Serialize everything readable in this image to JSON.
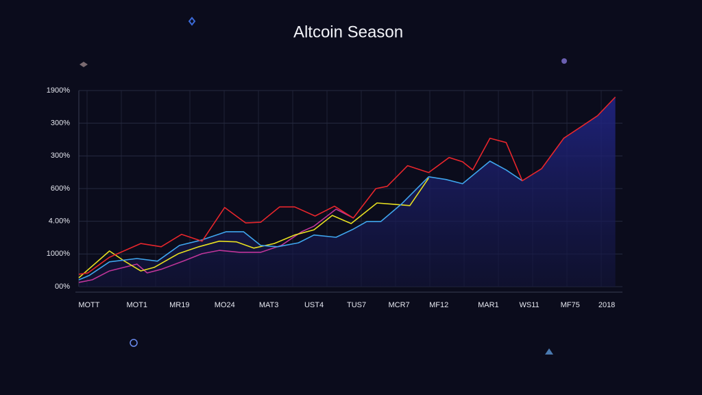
{
  "chart_data": {
    "type": "line",
    "title": "Altcoin Season",
    "grid": true,
    "xlim": [
      0,
      100
    ],
    "ylim": [
      0,
      6
    ],
    "xticks": [
      {
        "value": 1.9,
        "label": "MOTT"
      },
      {
        "value": 10.8,
        "label": "MOT1"
      },
      {
        "value": 18.7,
        "label": "MR19"
      },
      {
        "value": 27.1,
        "label": "MO24"
      },
      {
        "value": 35.3,
        "label": "MAT3"
      },
      {
        "value": 43.7,
        "label": "UST4"
      },
      {
        "value": 51.6,
        "label": "TUS7"
      },
      {
        "value": 59.5,
        "label": "MCR7"
      },
      {
        "value": 66.9,
        "label": "MF12"
      },
      {
        "value": 76.1,
        "label": "MAR1"
      },
      {
        "value": 83.7,
        "label": "WS11"
      },
      {
        "value": 91.3,
        "label": "MF75"
      },
      {
        "value": 98.1,
        "label": "2018"
      }
    ],
    "yticks": [
      {
        "value": 0,
        "label": "00%"
      },
      {
        "value": 1,
        "label": "1000%"
      },
      {
        "value": 2,
        "label": "4.00%"
      },
      {
        "value": 3,
        "label": "600%"
      },
      {
        "value": 4,
        "label": "300%"
      },
      {
        "value": 5,
        "label": "300%"
      },
      {
        "value": 6,
        "label": "1900%"
      }
    ],
    "series": [
      {
        "color": "#1c1f6e",
        "fill": true,
        "x": [
          0,
          1.9,
          5.7,
          10.8,
          14.6,
          18.7,
          22.9,
          27.4,
          30.6,
          33.8,
          36.9,
          40.8,
          43.7,
          47.8,
          51.0,
          53.5,
          56.1,
          59.9,
          65.0,
          68.2,
          71.3,
          76.4,
          79.4,
          82.4,
          86.0,
          90.1,
          93.4,
          96.4,
          99.7
        ],
        "values": [
          0.21,
          0.34,
          0.76,
          0.86,
          0.78,
          1.26,
          1.43,
          1.68,
          1.68,
          1.26,
          1.22,
          1.34,
          1.58,
          1.51,
          1.76,
          1.99,
          1.99,
          2.52,
          3.36,
          3.28,
          3.15,
          3.84,
          3.57,
          3.24,
          3.61,
          4.54,
          4.9,
          5.23,
          5.8
        ]
      },
      {
        "color": "#c0359a",
        "x": [
          0,
          2.5,
          5.7,
          10.8,
          12.7,
          15.3,
          19.7,
          22.9,
          26.1,
          29.9,
          33.8,
          37.6,
          41.4,
          43.7,
          47.8,
          51.0
        ],
        "values": [
          0.13,
          0.21,
          0.48,
          0.69,
          0.42,
          0.53,
          0.8,
          1.01,
          1.11,
          1.05,
          1.05,
          1.26,
          1.68,
          1.85,
          2.37,
          2.1
        ]
      },
      {
        "color": "#e8e020",
        "x": [
          0,
          5.7,
          8.3,
          11.5,
          14.0,
          18.5,
          22.3,
          26.1,
          29.3,
          32.5,
          36.3,
          40.1,
          43.7,
          47.1,
          50.6,
          55.4,
          58.6,
          61.5,
          65.0
        ],
        "values": [
          0.27,
          1.09,
          0.8,
          0.48,
          0.59,
          1.01,
          1.22,
          1.39,
          1.37,
          1.18,
          1.32,
          1.58,
          1.74,
          2.18,
          1.93,
          2.56,
          2.52,
          2.48,
          3.32
        ]
      },
      {
        "color": "#3fa6ee",
        "x": [
          0,
          1.9,
          5.7,
          10.8,
          14.6,
          18.7,
          22.9,
          27.4,
          30.6,
          33.8,
          36.9,
          40.8,
          43.7,
          47.8,
          51.0,
          53.5,
          56.1,
          59.9,
          65.0,
          68.2,
          71.3,
          76.4,
          79.4,
          82.4
        ],
        "values": [
          0.21,
          0.34,
          0.76,
          0.86,
          0.78,
          1.26,
          1.43,
          1.68,
          1.68,
          1.26,
          1.22,
          1.34,
          1.58,
          1.51,
          1.76,
          1.99,
          1.99,
          2.52,
          3.36,
          3.28,
          3.15,
          3.84,
          3.57,
          3.24
        ]
      },
      {
        "color": "#e8262c",
        "x": [
          0,
          1.7,
          5.7,
          11.5,
          15.3,
          19.1,
          22.9,
          27.1,
          31.0,
          33.8,
          37.3,
          40.1,
          43.9,
          47.5,
          51.0,
          55.2,
          57.3,
          61.1,
          65.0,
          68.8,
          71.3,
          73.2,
          76.4,
          79.4,
          82.4,
          86.0,
          90.1,
          93.4,
          96.4,
          99.7
        ],
        "values": [
          0.38,
          0.42,
          0.9,
          1.32,
          1.22,
          1.6,
          1.39,
          2.42,
          1.95,
          1.97,
          2.44,
          2.44,
          2.16,
          2.46,
          2.1,
          3.0,
          3.07,
          3.7,
          3.49,
          3.95,
          3.82,
          3.57,
          4.54,
          4.41,
          3.24,
          3.61,
          4.54,
          4.9,
          5.23,
          5.8
        ]
      }
    ]
  }
}
